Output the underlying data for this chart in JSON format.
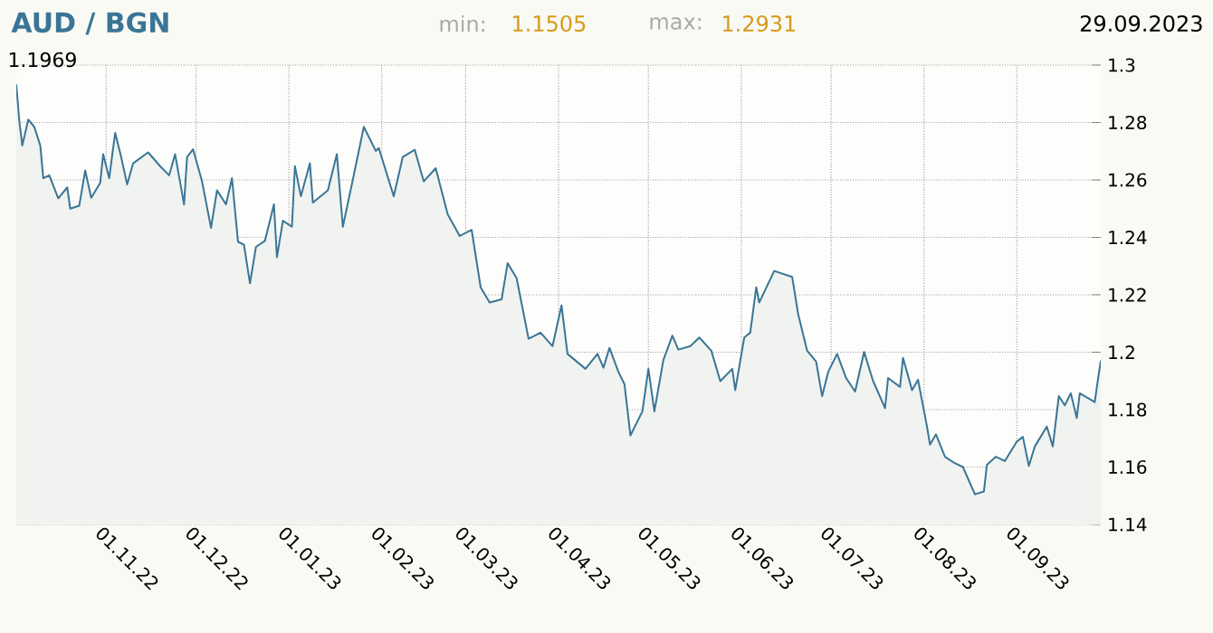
{
  "chart_data": {
    "type": "area",
    "title": "AUD / BGN",
    "annotations": [
      "min:",
      "1.1505",
      "max:",
      "1.2931",
      "29.09.2023",
      "1.1969"
    ],
    "x": [
      "2022-10-02",
      "2022-10-03",
      "2022-10-04",
      "2022-10-06",
      "2022-10-08",
      "2022-10-10",
      "2022-10-11",
      "2022-10-13",
      "2022-10-16",
      "2022-10-19",
      "2022-10-20",
      "2022-10-23",
      "2022-10-25",
      "2022-10-27",
      "2022-10-30",
      "2022-10-31",
      "2022-11-02",
      "2022-11-04",
      "2022-11-06",
      "2022-11-08",
      "2022-11-10",
      "2022-11-15",
      "2022-11-19",
      "2022-11-22",
      "2022-11-24",
      "2022-11-27",
      "2022-11-28",
      "2022-11-30",
      "2022-12-03",
      "2022-12-06",
      "2022-12-08",
      "2022-12-11",
      "2022-12-13",
      "2022-12-15",
      "2022-12-17",
      "2022-12-19",
      "2022-12-21",
      "2022-12-24",
      "2022-12-27",
      "2022-12-28",
      "2022-12-30",
      "2023-01-02",
      "2023-01-03",
      "2023-01-05",
      "2023-01-08",
      "2023-01-09",
      "2023-01-14",
      "2023-01-17",
      "2023-01-19",
      "2023-01-22",
      "2023-01-26",
      "2023-01-30",
      "2023-01-31",
      "2023-02-05",
      "2023-02-08",
      "2023-02-12",
      "2023-02-15",
      "2023-02-19",
      "2023-02-23",
      "2023-02-27",
      "2023-03-03",
      "2023-03-06",
      "2023-03-09",
      "2023-03-13",
      "2023-03-15",
      "2023-03-18",
      "2023-03-22",
      "2023-03-26",
      "2023-03-30",
      "2023-04-02",
      "2023-04-04",
      "2023-04-10",
      "2023-04-14",
      "2023-04-16",
      "2023-04-18",
      "2023-04-21",
      "2023-04-23",
      "2023-04-25",
      "2023-04-29",
      "2023-05-01",
      "2023-05-03",
      "2023-05-06",
      "2023-05-09",
      "2023-05-11",
      "2023-05-15",
      "2023-05-18",
      "2023-05-22",
      "2023-05-25",
      "2023-05-29",
      "2023-05-30",
      "2023-06-02",
      "2023-06-04",
      "2023-06-06",
      "2023-06-07",
      "2023-06-12",
      "2023-06-18",
      "2023-06-20",
      "2023-06-23",
      "2023-06-26",
      "2023-06-28",
      "2023-06-30",
      "2023-07-03",
      "2023-07-06",
      "2023-07-09",
      "2023-07-12",
      "2023-07-15",
      "2023-07-19",
      "2023-07-20",
      "2023-07-24",
      "2023-07-25",
      "2023-07-28",
      "2023-07-30",
      "2023-08-02",
      "2023-08-03",
      "2023-08-05",
      "2023-08-08",
      "2023-08-11",
      "2023-08-14",
      "2023-08-18",
      "2023-08-21",
      "2023-08-22",
      "2023-08-25",
      "2023-08-28",
      "2023-09-01",
      "2023-09-03",
      "2023-09-05",
      "2023-09-07",
      "2023-09-11",
      "2023-09-13",
      "2023-09-15",
      "2023-09-17",
      "2023-09-19",
      "2023-09-21",
      "2023-09-22",
      "2023-09-27",
      "2023-09-28",
      "2023-09-29"
    ],
    "series": [
      {
        "color": "#3a7596",
        "values": [
          1.2931,
          1.2806,
          1.272,
          1.281,
          1.2785,
          1.272,
          1.2606,
          1.2616,
          1.2536,
          1.2574,
          1.25,
          1.251,
          1.2633,
          1.2538,
          1.259,
          1.269,
          1.2606,
          1.2764,
          1.268,
          1.2584,
          1.2658,
          1.2696,
          1.2648,
          1.2616,
          1.269,
          1.2515,
          1.268,
          1.2707,
          1.2595,
          1.2433,
          1.2564,
          1.2515,
          1.2606,
          1.2385,
          1.2374,
          1.224,
          1.2367,
          1.2388,
          1.2515,
          1.2331,
          1.2458,
          1.2437,
          1.2648,
          1.2543,
          1.2658,
          1.2521,
          1.2564,
          1.269,
          1.2437,
          1.2584,
          1.2785,
          1.2701,
          1.2711,
          1.2543,
          1.268,
          1.2705,
          1.2595,
          1.2641,
          1.248,
          1.2405,
          1.2426,
          1.2226,
          1.2173,
          1.2184,
          1.231,
          1.2258,
          1.2047,
          1.2068,
          1.2021,
          1.2163,
          1.1994,
          1.1942,
          1.1994,
          1.1946,
          1.2015,
          1.1931,
          1.1889,
          1.171,
          1.1794,
          1.1942,
          1.1794,
          1.1973,
          1.2058,
          1.2009,
          1.2021,
          1.2051,
          1.2005,
          1.1899,
          1.1942,
          1.1868,
          1.2051,
          1.2068,
          1.2226,
          1.2173,
          1.2283,
          1.2262,
          1.2132,
          1.2005,
          1.1967,
          1.1847,
          1.1931,
          1.1994,
          1.191,
          1.1863,
          1.2001,
          1.19,
          1.1805,
          1.191,
          1.1879,
          1.198,
          1.1868,
          1.1904,
          1.1741,
          1.1678,
          1.1714,
          1.1636,
          1.1615,
          1.16,
          1.1505,
          1.1515,
          1.1608,
          1.1636,
          1.1621,
          1.1689,
          1.1705,
          1.1604,
          1.1672,
          1.1741,
          1.1672,
          1.1847,
          1.1815,
          1.1857,
          1.1771,
          1.1857,
          1.1826,
          1.19,
          1.1969
        ]
      }
    ],
    "xlim": [
      "2022-10-02",
      "2023-09-29"
    ],
    "xticks": [
      {
        "value": "2022-11-01",
        "label": "01.11.22"
      },
      {
        "value": "2022-12-01",
        "label": "01.12.22"
      },
      {
        "value": "2023-01-01",
        "label": "01.01.23"
      },
      {
        "value": "2023-02-01",
        "label": "01.02.23"
      },
      {
        "value": "2023-03-01",
        "label": "01.03.23"
      },
      {
        "value": "2023-04-01",
        "label": "01.04.23"
      },
      {
        "value": "2023-05-01",
        "label": "01.05.23"
      },
      {
        "value": "2023-06-01",
        "label": "01.06.23"
      },
      {
        "value": "2023-07-01",
        "label": "01.07.23"
      },
      {
        "value": "2023-08-01",
        "label": "01.08.23"
      },
      {
        "value": "2023-09-01",
        "label": "01.09.23"
      }
    ],
    "ylim": [
      1.14,
      1.3
    ],
    "yticks": [
      {
        "value": 1.14,
        "label": "1.14"
      },
      {
        "value": 1.16,
        "label": "1.16"
      },
      {
        "value": 1.18,
        "label": "1.18"
      },
      {
        "value": 1.2,
        "label": "1.2"
      },
      {
        "value": 1.22,
        "label": "1.22"
      },
      {
        "value": 1.24,
        "label": "1.24"
      },
      {
        "value": 1.26,
        "label": "1.26"
      },
      {
        "value": 1.28,
        "label": "1.28"
      },
      {
        "value": 1.3,
        "label": "1.3"
      }
    ],
    "grid": true
  }
}
